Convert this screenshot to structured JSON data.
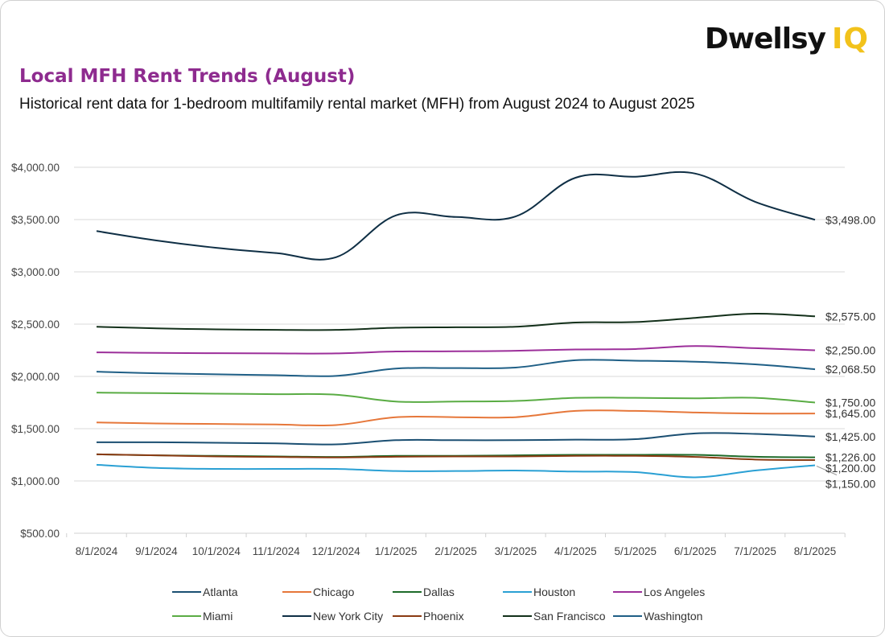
{
  "brand": {
    "word": "Dwellsy",
    "suffix": "IQ",
    "suffix_color": "#f2c21b"
  },
  "header": {
    "title": "Local MFH Rent Trends (August)",
    "subtitle": "Historical rent data for 1-bedroom multifamily rental market (MFH) from August 2024 to August 2025"
  },
  "chart_data": {
    "type": "line",
    "title": "Local MFH Rent Trends (August)",
    "subtitle": "Historical rent data for 1-bedroom multifamily rental market (MFH) from August 2024 to August 2025",
    "xlabel": "",
    "ylabel": "",
    "ylim": [
      500,
      4000
    ],
    "y_ticks": [
      500,
      1000,
      1500,
      2000,
      2500,
      3000,
      3500,
      4000
    ],
    "y_tick_labels": [
      "$500.00",
      "$1,000.00",
      "$1,500.00",
      "$2,000.00",
      "$2,500.00",
      "$3,000.00",
      "$3,500.00",
      "$4,000.00"
    ],
    "grid": true,
    "smoothed": true,
    "legend_position": "bottom",
    "categories": [
      "8/1/2024",
      "9/1/2024",
      "10/1/2024",
      "11/1/2024",
      "12/1/2024",
      "1/1/2025",
      "2/1/2025",
      "3/1/2025",
      "4/1/2025",
      "5/1/2025",
      "6/1/2025",
      "7/1/2025",
      "8/1/2025"
    ],
    "series": [
      {
        "name": "Atlanta",
        "color": "#1b4f72",
        "end_label": "$1,425.00",
        "values": [
          1370,
          1370,
          1365,
          1360,
          1350,
          1390,
          1390,
          1390,
          1395,
          1400,
          1455,
          1450,
          1425
        ]
      },
      {
        "name": "Chicago",
        "color": "#e6773a",
        "end_label": "$1,645.00",
        "values": [
          1560,
          1550,
          1545,
          1540,
          1535,
          1610,
          1610,
          1610,
          1670,
          1670,
          1655,
          1645,
          1645
        ]
      },
      {
        "name": "Dallas",
        "color": "#1e6b2a",
        "end_label": "$1,226.00",
        "values": [
          1255,
          1245,
          1240,
          1235,
          1230,
          1240,
          1240,
          1245,
          1250,
          1250,
          1250,
          1232,
          1226
        ]
      },
      {
        "name": "Houston",
        "color": "#2aa0d4",
        "end_label": "$1,150.00",
        "values": [
          1155,
          1125,
          1115,
          1115,
          1115,
          1095,
          1095,
          1100,
          1090,
          1085,
          1035,
          1100,
          1150
        ]
      },
      {
        "name": "Los Angeles",
        "color": "#9c2f9a",
        "end_label": "$2,250.00",
        "values": [
          2230,
          2225,
          2222,
          2220,
          2220,
          2238,
          2240,
          2245,
          2258,
          2262,
          2290,
          2270,
          2250
        ]
      },
      {
        "name": "Miami",
        "color": "#5aac44",
        "end_label": "$1,750.00",
        "values": [
          1845,
          1840,
          1835,
          1830,
          1825,
          1760,
          1760,
          1765,
          1795,
          1795,
          1790,
          1795,
          1750
        ]
      },
      {
        "name": "New York City",
        "color": "#0f2f45",
        "end_label": "$3,498.00",
        "values": [
          3390,
          3300,
          3230,
          3180,
          3140,
          3540,
          3525,
          3530,
          3900,
          3910,
          3940,
          3670,
          3498
        ]
      },
      {
        "name": "Phoenix",
        "color": "#8a3a12",
        "end_label": "$1,200.00",
        "values": [
          1255,
          1245,
          1235,
          1230,
          1225,
          1232,
          1235,
          1235,
          1240,
          1240,
          1230,
          1205,
          1200
        ]
      },
      {
        "name": "San Francisco",
        "color": "#13301a",
        "end_label": "$2,575.00",
        "values": [
          2475,
          2460,
          2450,
          2445,
          2445,
          2465,
          2470,
          2475,
          2515,
          2520,
          2560,
          2600,
          2575
        ]
      },
      {
        "name": "Washington",
        "color": "#1f5f86",
        "end_label": "$2,068.50",
        "values": [
          2045,
          2030,
          2020,
          2012,
          2005,
          2075,
          2080,
          2085,
          2155,
          2150,
          2140,
          2115,
          2068.5
        ]
      }
    ]
  }
}
